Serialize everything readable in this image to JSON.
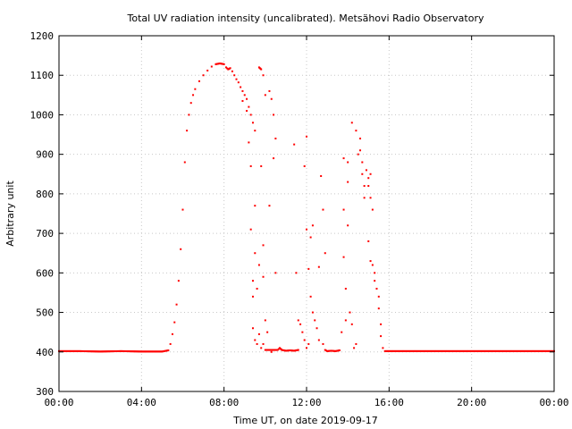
{
  "chart_data": {
    "type": "scatter",
    "title": "Total UV radiation intensity (uncalibrated). Metsähovi Radio Observatory",
    "xlabel": "Time UT, on date 2019-09-17",
    "ylabel": "Arbitrary unit",
    "xlim": [
      0,
      24
    ],
    "ylim": [
      300,
      1200
    ],
    "x_ticks": [
      {
        "value": 0,
        "label": "00:00"
      },
      {
        "value": 4,
        "label": "04:00"
      },
      {
        "value": 8,
        "label": "08:00"
      },
      {
        "value": 12,
        "label": "12:00"
      },
      {
        "value": 16,
        "label": "16:00"
      },
      {
        "value": 20,
        "label": "20:00"
      },
      {
        "value": 24,
        "label": "00:00"
      }
    ],
    "y_ticks": [
      300,
      400,
      500,
      600,
      700,
      800,
      900,
      1000,
      1100,
      1200
    ],
    "grid": true,
    "marker_color": "#ff0000",
    "series": [
      {
        "points": [
          [
            0.0,
            402
          ],
          [
            1.0,
            402
          ],
          [
            2.0,
            401
          ],
          [
            3.0,
            402
          ],
          [
            4.0,
            401
          ],
          [
            5.0,
            401
          ],
          [
            5.3,
            404
          ],
          [
            5.4,
            420
          ],
          [
            5.5,
            445
          ],
          [
            5.6,
            475
          ],
          [
            5.7,
            520
          ],
          [
            5.8,
            580
          ],
          [
            5.9,
            660
          ],
          [
            6.0,
            760
          ],
          [
            6.1,
            880
          ],
          [
            6.2,
            960
          ],
          [
            6.3,
            1000
          ],
          [
            6.4,
            1030
          ],
          [
            6.5,
            1050
          ],
          [
            6.6,
            1065
          ],
          [
            6.8,
            1085
          ],
          [
            7.0,
            1100
          ],
          [
            7.2,
            1112
          ],
          [
            7.4,
            1122
          ],
          [
            7.6,
            1128
          ],
          [
            7.8,
            1130
          ],
          [
            8.0,
            1128
          ],
          [
            8.1,
            1120
          ],
          [
            8.2,
            1115
          ],
          [
            8.3,
            1118
          ],
          [
            8.4,
            1110
          ],
          [
            8.5,
            1100
          ],
          [
            8.6,
            1090
          ],
          [
            8.7,
            1082
          ],
          [
            8.8,
            1070
          ],
          [
            8.9,
            1060
          ],
          [
            9.0,
            1050
          ],
          [
            9.1,
            1040
          ],
          [
            9.2,
            1020
          ],
          [
            9.3,
            1000
          ],
          [
            9.4,
            980
          ],
          [
            9.5,
            960
          ],
          [
            8.9,
            1035
          ],
          [
            9.1,
            1010
          ],
          [
            9.2,
            930
          ],
          [
            9.3,
            870
          ],
          [
            9.3,
            710
          ],
          [
            9.4,
            580
          ],
          [
            9.4,
            540
          ],
          [
            9.5,
            770
          ],
          [
            9.5,
            650
          ],
          [
            9.6,
            560
          ],
          [
            9.7,
            620
          ],
          [
            9.7,
            1120
          ],
          [
            9.8,
            1115
          ],
          [
            9.9,
            1100
          ],
          [
            10.0,
            1050
          ],
          [
            10.2,
            1060
          ],
          [
            10.3,
            1040
          ],
          [
            10.4,
            1000
          ],
          [
            10.5,
            940
          ],
          [
            10.4,
            890
          ],
          [
            10.2,
            770
          ],
          [
            9.8,
            870
          ],
          [
            9.9,
            670
          ],
          [
            9.9,
            590
          ],
          [
            10.0,
            480
          ],
          [
            10.1,
            450
          ],
          [
            10.3,
            400
          ],
          [
            10.5,
            600
          ],
          [
            9.4,
            460
          ],
          [
            9.5,
            430
          ],
          [
            9.6,
            420
          ],
          [
            9.7,
            445
          ],
          [
            9.8,
            410
          ],
          [
            9.9,
            420
          ],
          [
            10.0,
            405
          ],
          [
            10.2,
            405
          ],
          [
            10.6,
            405
          ],
          [
            10.7,
            410
          ],
          [
            10.8,
            405
          ],
          [
            11.0,
            403
          ],
          [
            11.2,
            404
          ],
          [
            11.4,
            403
          ],
          [
            11.6,
            405
          ],
          [
            11.4,
            925
          ],
          [
            11.5,
            600
          ],
          [
            11.6,
            480
          ],
          [
            11.7,
            470
          ],
          [
            11.8,
            450
          ],
          [
            11.9,
            430
          ],
          [
            12.0,
            410
          ],
          [
            12.1,
            420
          ],
          [
            11.9,
            870
          ],
          [
            12.0,
            945
          ],
          [
            12.0,
            710
          ],
          [
            12.1,
            610
          ],
          [
            12.2,
            540
          ],
          [
            12.3,
            500
          ],
          [
            12.4,
            480
          ],
          [
            12.5,
            460
          ],
          [
            12.6,
            430
          ],
          [
            12.2,
            690
          ],
          [
            12.3,
            720
          ],
          [
            12.6,
            615
          ],
          [
            12.7,
            845
          ],
          [
            12.8,
            760
          ],
          [
            12.9,
            650
          ],
          [
            12.8,
            420
          ],
          [
            12.9,
            405
          ],
          [
            13.0,
            402
          ],
          [
            13.2,
            403
          ],
          [
            13.4,
            402
          ],
          [
            13.6,
            404
          ],
          [
            13.7,
            450
          ],
          [
            13.8,
            890
          ],
          [
            13.8,
            760
          ],
          [
            13.8,
            640
          ],
          [
            13.9,
            560
          ],
          [
            13.9,
            480
          ],
          [
            14.0,
            880
          ],
          [
            14.0,
            830
          ],
          [
            14.0,
            720
          ],
          [
            14.1,
            500
          ],
          [
            14.2,
            470
          ],
          [
            14.2,
            980
          ],
          [
            14.3,
            410
          ],
          [
            14.4,
            960
          ],
          [
            14.4,
            420
          ],
          [
            14.5,
            900
          ],
          [
            14.6,
            940
          ],
          [
            14.6,
            910
          ],
          [
            14.7,
            880
          ],
          [
            14.7,
            850
          ],
          [
            14.8,
            820
          ],
          [
            14.8,
            790
          ],
          [
            14.9,
            860
          ],
          [
            15.0,
            840
          ],
          [
            15.0,
            820
          ],
          [
            15.0,
            680
          ],
          [
            15.1,
            850
          ],
          [
            15.1,
            790
          ],
          [
            15.1,
            630
          ],
          [
            15.2,
            760
          ],
          [
            15.2,
            620
          ],
          [
            15.3,
            600
          ],
          [
            15.3,
            580
          ],
          [
            15.4,
            560
          ],
          [
            15.5,
            540
          ],
          [
            15.5,
            510
          ],
          [
            15.6,
            470
          ],
          [
            15.6,
            440
          ],
          [
            15.7,
            410
          ],
          [
            15.8,
            402
          ],
          [
            16.0,
            402
          ],
          [
            17.0,
            402
          ],
          [
            18.0,
            402
          ],
          [
            19.0,
            402
          ],
          [
            20.0,
            402
          ],
          [
            21.0,
            402
          ],
          [
            22.0,
            402
          ],
          [
            23.0,
            402
          ],
          [
            24.0,
            402
          ]
        ]
      }
    ]
  }
}
